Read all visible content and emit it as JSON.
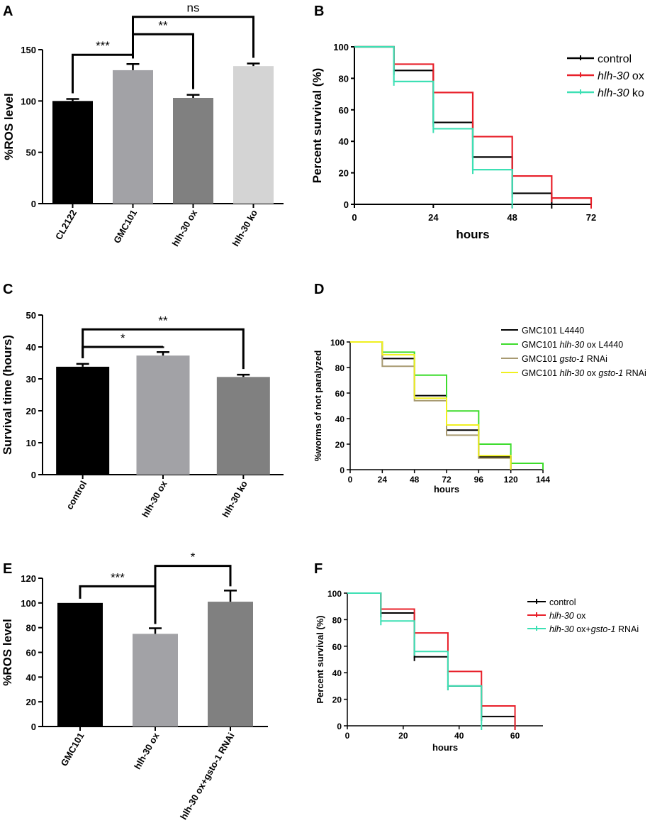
{
  "chart_data": [
    {
      "panel": "A",
      "type": "bar",
      "ylabel": "%ROS level",
      "ylim": [
        0,
        150
      ],
      "yticks": [
        0,
        50,
        100,
        150
      ],
      "categories": [
        "CL2122",
        "GMC101",
        "hlh-30 ox",
        "hlh-30 ko"
      ],
      "values": [
        100,
        130,
        103,
        134
      ],
      "errors": [
        2,
        6,
        3,
        2.5
      ],
      "colors": [
        "#000000",
        "#a2a2a6",
        "#808080",
        "#d4d4d4"
      ],
      "significance": [
        {
          "from": 0,
          "to": 1,
          "label": "***",
          "level": 145
        },
        {
          "from": 1,
          "to": 2,
          "label": "**",
          "level": 165
        },
        {
          "from": 1,
          "to": 3,
          "label": "ns",
          "level": 182
        }
      ]
    },
    {
      "panel": "B",
      "type": "line",
      "step": true,
      "xlabel": "hours",
      "ylabel": "Percent survival (%)",
      "xlim": [
        0,
        72
      ],
      "ylim": [
        0,
        100
      ],
      "xticks": [
        0,
        24,
        48,
        72
      ],
      "yticks": [
        0,
        20,
        40,
        60,
        80,
        100
      ],
      "series": [
        {
          "name": "control",
          "color": "#000000",
          "x": [
            0,
            12,
            24,
            36,
            48,
            60
          ],
          "y": [
            100,
            85,
            52,
            30,
            7,
            0
          ]
        },
        {
          "name": "hlh-30 ox",
          "color": "#e8202a",
          "x": [
            0,
            12,
            24,
            36,
            48,
            60,
            72
          ],
          "y": [
            100,
            89,
            71,
            43,
            18,
            4,
            0
          ]
        },
        {
          "name": "hlh-30 ko",
          "color": "#3de0b4",
          "x": [
            0,
            12,
            24,
            36,
            48
          ],
          "y": [
            100,
            78,
            48,
            22,
            0
          ]
        }
      ],
      "legend": [
        {
          "italic": "",
          "plain": "control"
        },
        {
          "italic": "hlh-30",
          "plain": " ox"
        },
        {
          "italic": "hlh-30",
          "plain": " ko"
        }
      ]
    },
    {
      "panel": "C",
      "type": "bar",
      "ylabel": "Survival time (hours)",
      "ylim": [
        0,
        50
      ],
      "yticks": [
        0,
        10,
        20,
        30,
        40,
        50
      ],
      "categories": [
        "control",
        "hlh-30 ox",
        "hlh-30 ko"
      ],
      "values": [
        33.8,
        37.3,
        30.6
      ],
      "errors": [
        0.9,
        1.1,
        0.7
      ],
      "colors": [
        "#000000",
        "#a2a2a6",
        "#808080"
      ],
      "significance": [
        {
          "from": 0,
          "to": 1,
          "label": "*",
          "level": 40
        },
        {
          "from": 0,
          "to": 2,
          "label": "**",
          "level": 45.5
        }
      ]
    },
    {
      "panel": "D",
      "type": "line",
      "step": true,
      "xlabel": "hours",
      "ylabel": "%worms of not paralyzed",
      "xlim": [
        0,
        144
      ],
      "ylim": [
        0,
        100
      ],
      "xticks": [
        0,
        24,
        48,
        72,
        96,
        120,
        144
      ],
      "yticks": [
        0,
        20,
        40,
        60,
        80,
        100
      ],
      "series": [
        {
          "name": "GMC101 L4440",
          "color": "#000000",
          "x": [
            0,
            24,
            48,
            72,
            96,
            120
          ],
          "y": [
            100,
            87,
            58,
            31,
            10,
            0
          ]
        },
        {
          "name": "GMC101 hlh-30 ox L4440",
          "color": "#3ddc2c",
          "x": [
            0,
            24,
            48,
            72,
            96,
            120,
            144
          ],
          "y": [
            100,
            92,
            74,
            46,
            20,
            5,
            0
          ]
        },
        {
          "name": "GMC101 gsto-1 RNAi",
          "color": "#a89a72",
          "x": [
            0,
            24,
            48,
            72,
            96,
            120
          ],
          "y": [
            100,
            81,
            54,
            27,
            9,
            0
          ]
        },
        {
          "name": "GMC101 hlh-30 ox gsto-1 RNAi",
          "color": "#f0f020",
          "x": [
            0,
            24,
            48,
            72,
            96,
            120
          ],
          "y": [
            100,
            90,
            56,
            35,
            11,
            0
          ]
        }
      ],
      "legend": [
        {
          "a": "GMC101 L4440",
          "i": "",
          "b": ""
        },
        {
          "a": "GMC101 ",
          "i": "hlh-30",
          "b": " ox L4440"
        },
        {
          "a": "GMC101 ",
          "i": "gsto-1",
          "b": " RNAi"
        },
        {
          "a": "GMC101 ",
          "i": "hlh-30",
          "b": " ox gsto-1 RNAi"
        }
      ]
    },
    {
      "panel": "E",
      "type": "bar",
      "ylabel": "%ROS level",
      "ylim": [
        0,
        120
      ],
      "yticks": [
        0,
        20,
        40,
        60,
        80,
        100,
        120
      ],
      "categories": [
        "GMC101",
        "hlh-30 ox",
        "hlh-30 ox+gsto-1 RNAi"
      ],
      "values": [
        100,
        75,
        101
      ],
      "errors": [
        0,
        4.5,
        9
      ],
      "colors": [
        "#000000",
        "#a2a2a6",
        "#808080"
      ],
      "significance": [
        {
          "from": 0,
          "to": 1,
          "label": "***",
          "level": 113.5
        },
        {
          "from": 1,
          "to": 2,
          "label": "*",
          "level": 130
        }
      ]
    },
    {
      "panel": "F",
      "type": "line",
      "step": true,
      "xlabel": "hours",
      "ylabel": "Percent survival (%)",
      "xlim": [
        0,
        70
      ],
      "ylim": [
        0,
        100
      ],
      "xticks": [
        0,
        20,
        40,
        60
      ],
      "yticks": [
        0,
        20,
        40,
        60,
        80,
        100
      ],
      "series": [
        {
          "name": "control",
          "color": "#000000",
          "x": [
            0,
            12,
            24,
            36,
            48,
            60
          ],
          "y": [
            100,
            85,
            52,
            30,
            7,
            0
          ]
        },
        {
          "name": "hlh-30 ox",
          "color": "#e8202a",
          "x": [
            0,
            12,
            24,
            36,
            48,
            60
          ],
          "y": [
            100,
            88,
            70,
            41,
            15,
            0
          ]
        },
        {
          "name": "hlh-30 ox+gsto-1 RNAi",
          "color": "#3de0b4",
          "x": [
            0,
            12,
            24,
            36,
            48
          ],
          "y": [
            100,
            79,
            56,
            30,
            0
          ]
        }
      ],
      "legend": [
        {
          "a": "control",
          "i": "",
          "b": "",
          "i2": "",
          "c": ""
        },
        {
          "a": "",
          "i": "hlh-30",
          "b": " ox",
          "i2": "",
          "c": ""
        },
        {
          "a": "",
          "i": "hlh-30",
          "b": " ox+",
          "i2": "gsto-1",
          "c": " RNAi"
        }
      ]
    }
  ]
}
